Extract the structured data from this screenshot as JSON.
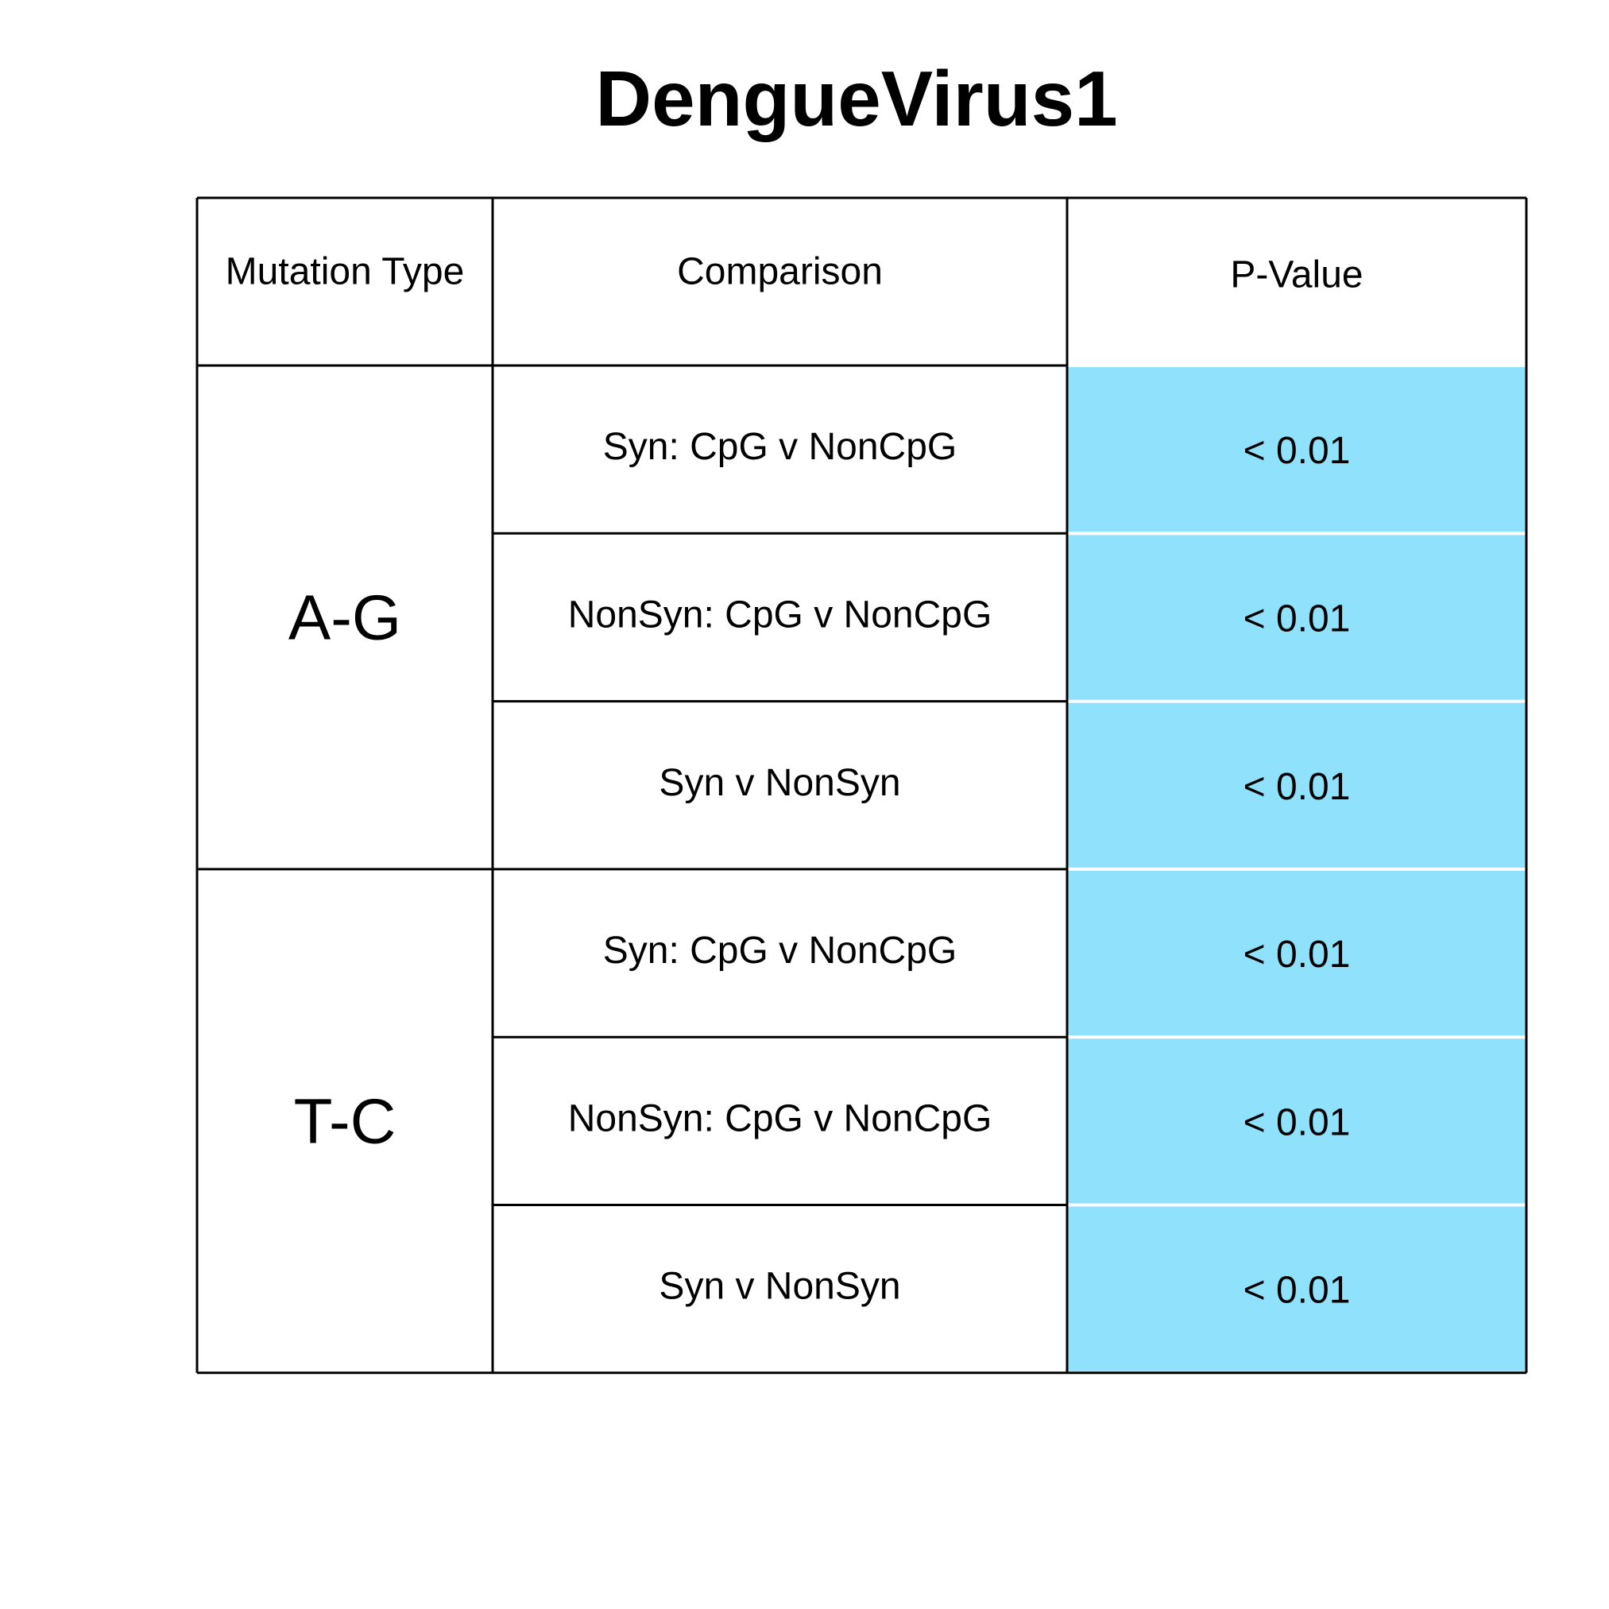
{
  "chart_data": {
    "type": "table",
    "title": "DengueVirus1",
    "columns": [
      "Mutation Type",
      "Comparison",
      "P-Value"
    ],
    "highlight_color": "#8FE1FC",
    "groups": [
      {
        "mutation_type": "A-G",
        "rows": [
          {
            "comparison": "Syn: CpG v NonCpG",
            "p_value": "< 0.01"
          },
          {
            "comparison": "NonSyn: CpG v NonCpG",
            "p_value": "< 0.01"
          },
          {
            "comparison": "Syn v NonSyn",
            "p_value": "< 0.01"
          }
        ]
      },
      {
        "mutation_type": "T-C",
        "rows": [
          {
            "comparison": "Syn: CpG v NonCpG",
            "p_value": "< 0.01"
          },
          {
            "comparison": "NonSyn: CpG v NonCpG",
            "p_value": "< 0.01"
          },
          {
            "comparison": "Syn v NonSyn",
            "p_value": "< 0.01"
          }
        ]
      }
    ]
  }
}
